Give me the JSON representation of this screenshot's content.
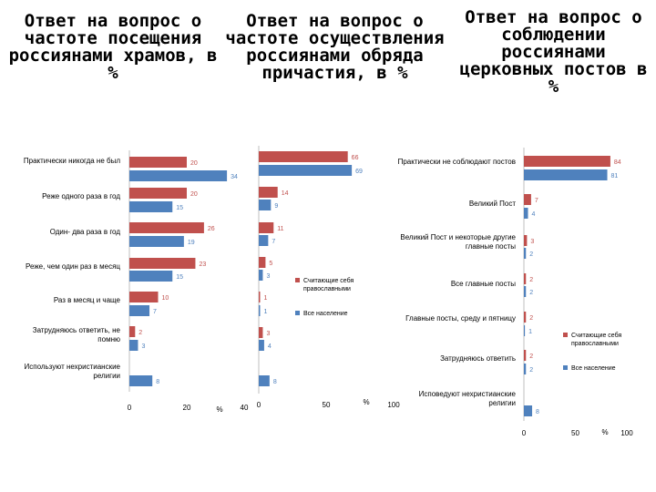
{
  "titles": [
    "Ответ на вопрос о частоте посещения россиянами храмов, в %",
    "Ответ на вопрос о частоте осуществления россиянами обряда причастия, в %",
    "Ответ на вопрос о соблюдении россиянами церковных постов в %"
  ],
  "colors": {
    "orthodox": "#c0504d",
    "all": "#4f81bd",
    "axis": "#bfbfbf"
  },
  "chart_data": [
    {
      "type": "bar",
      "orientation": "horizontal",
      "title": "Ответ на вопрос о частоте посещения россиянами храмов, в %",
      "categories": [
        "Практически никогда не был",
        "Реже одного раза в год",
        "Один- два раза в год",
        "Реже, чем один раз в месяц",
        "Раз в месяц и чаще",
        "Затрудняюсь ответить, не помню",
        "Используют нехристианские религии"
      ],
      "series": [
        {
          "name": "",
          "values": [
            20,
            20,
            26,
            23,
            10,
            2,
            null
          ]
        },
        {
          "name": "",
          "values": [
            34,
            15,
            19,
            15,
            7,
            3,
            8
          ]
        }
      ],
      "xlim": [
        0,
        40
      ],
      "ticks": [
        "0",
        "20",
        "40"
      ],
      "unit": "%"
    },
    {
      "type": "bar",
      "orientation": "horizontal",
      "title": "Ответ на вопрос о частоте осуществления россиянами обряда причастия, в %",
      "categories": [
        "",
        "",
        "",
        "",
        "",
        "",
        ""
      ],
      "series": [
        {
          "name": "Считающие себя православными",
          "values": [
            66,
            14,
            11,
            5,
            1,
            3,
            null
          ]
        },
        {
          "name": "Все население",
          "values": [
            69,
            9,
            7,
            3,
            1,
            4,
            8
          ]
        }
      ],
      "xlim": [
        0,
        100
      ],
      "ticks": [
        "0",
        "50",
        "100"
      ],
      "unit": "%"
    },
    {
      "type": "bar",
      "orientation": "horizontal",
      "title": "Ответ на вопрос о соблюдении россиянами церковных постов в %",
      "categories": [
        "Практически не соблюдают постов",
        "Великий Пост",
        "Великий Пост и некоторые другие главные посты",
        "Все главные посты",
        "Главные посты, среду и пятницу",
        "Затрудняюсь ответить",
        "Исповедуют нехристианские религии"
      ],
      "series": [
        {
          "name": "Считающие себя православными",
          "values": [
            84,
            7,
            3,
            2,
            2,
            2,
            null
          ]
        },
        {
          "name": "Все население",
          "values": [
            81,
            4,
            2,
            2,
            1,
            2,
            8
          ]
        }
      ],
      "xlim": [
        0,
        100
      ],
      "ticks": [
        "0",
        "50",
        "100"
      ],
      "unit": "%"
    }
  ]
}
